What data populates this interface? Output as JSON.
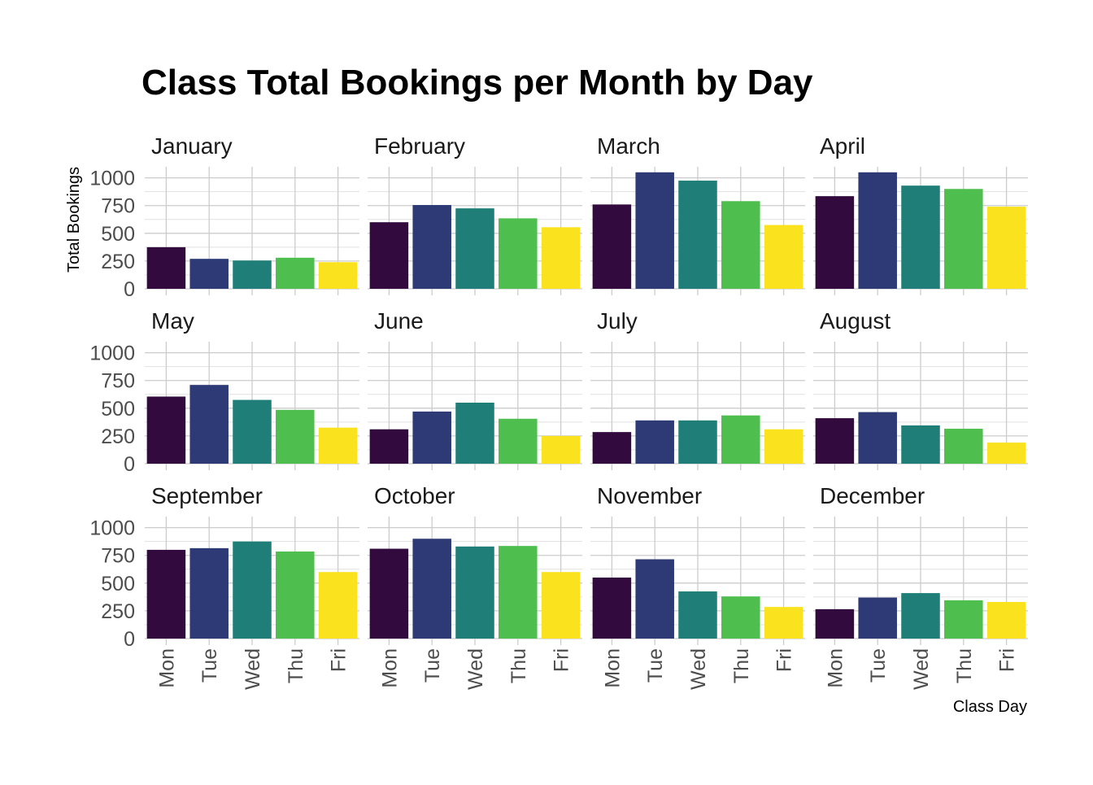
{
  "chart_data": {
    "type": "bar",
    "title": "Class Total Bookings per Month by Day",
    "xlabel": "Class Day",
    "ylabel": "Total Bookings",
    "ylim": [
      0,
      1100
    ],
    "yticks": [
      0,
      250,
      500,
      750,
      1000
    ],
    "grid": true,
    "legend": "none",
    "categories": [
      "Mon",
      "Tue",
      "Wed",
      "Thu",
      "Fri"
    ],
    "colors": [
      "#330a3e",
      "#2d3a75",
      "#1f7f78",
      "#4ebf4f",
      "#fae21f"
    ],
    "panels": [
      {
        "name": "January",
        "values": [
          375,
          270,
          255,
          280,
          240
        ]
      },
      {
        "name": "February",
        "values": [
          600,
          755,
          725,
          635,
          555
        ]
      },
      {
        "name": "March",
        "values": [
          760,
          1050,
          975,
          790,
          575
        ]
      },
      {
        "name": "April",
        "values": [
          835,
          1050,
          930,
          900,
          740
        ]
      },
      {
        "name": "May",
        "values": [
          605,
          710,
          575,
          485,
          325
        ]
      },
      {
        "name": "June",
        "values": [
          310,
          470,
          550,
          405,
          250
        ]
      },
      {
        "name": "July",
        "values": [
          285,
          390,
          390,
          435,
          310
        ]
      },
      {
        "name": "August",
        "values": [
          410,
          465,
          345,
          315,
          190
        ]
      },
      {
        "name": "September",
        "values": [
          800,
          815,
          875,
          785,
          600
        ]
      },
      {
        "name": "October",
        "values": [
          810,
          900,
          830,
          835,
          600
        ]
      },
      {
        "name": "November",
        "values": [
          550,
          715,
          425,
          380,
          285
        ]
      },
      {
        "name": "December",
        "values": [
          265,
          370,
          410,
          345,
          330
        ]
      }
    ]
  }
}
